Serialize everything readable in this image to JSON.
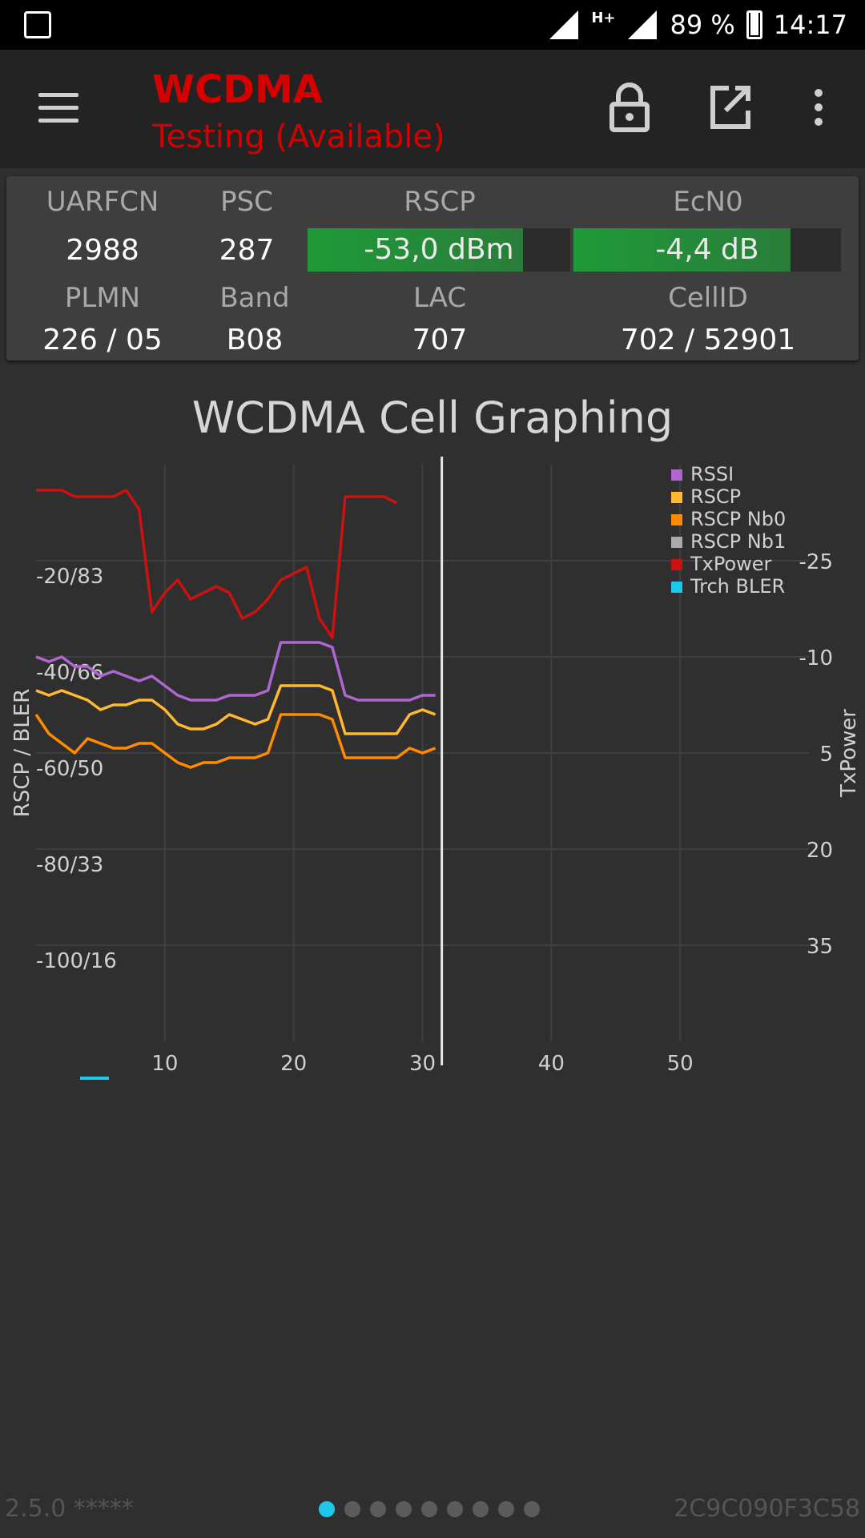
{
  "status_bar": {
    "battery": "89 %",
    "time": "14:17",
    "network": "H+"
  },
  "app_bar": {
    "title": "WCDMA",
    "subtitle": "Testing (Available)"
  },
  "cell_info": {
    "uarfcn_label": "UARFCN",
    "uarfcn": "2988",
    "psc_label": "PSC",
    "psc": "287",
    "rscp_label": "RSCP",
    "rscp": "-53,0 dBm",
    "rscp_fill": 0.82,
    "ecn0_label": "EcN0",
    "ecn0": "-4,4 dB",
    "ecn0_fill": 0.81,
    "plmn_label": "PLMN",
    "plmn": "226 / 05",
    "band_label": "Band",
    "band": "B08",
    "lac_label": "LAC",
    "lac": "707",
    "cellid_label": "CellID",
    "cellid": "702 / 52901"
  },
  "chart_data": {
    "type": "line",
    "title": "WCDMA Cell Graphing",
    "ylabel_left": "RSCP / BLER",
    "ylabel_right": "TxPower",
    "xlim": [
      0,
      60
    ],
    "ylim_left": [
      -120,
      0
    ],
    "ylim_right": [
      -40,
      50
    ],
    "x_ticks": [
      "10",
      "20",
      "30",
      "40",
      "50"
    ],
    "y_left_ticks": [
      {
        "value": -20,
        "label": "-20/83"
      },
      {
        "value": -40,
        "label": "-40/66"
      },
      {
        "value": -60,
        "label": "-60/50"
      },
      {
        "value": -80,
        "label": "-80/33"
      },
      {
        "value": -100,
        "label": "-100/16"
      }
    ],
    "y_right_ticks": [
      "-25",
      "-10",
      "5",
      "20",
      "35"
    ],
    "grid": true,
    "legend_position": "top-right",
    "cursor_x": 31.5,
    "series": [
      {
        "name": "RSSI",
        "color": "#b066d0",
        "axis": "left",
        "values": [
          -40,
          -41,
          -40,
          -42,
          -42,
          -44,
          -43,
          -44,
          -45,
          -44,
          -46,
          -48,
          -49,
          -49,
          -49,
          -48,
          -48,
          -48,
          -47,
          -37,
          -37,
          -37,
          -37,
          -38,
          -48,
          -49,
          -49,
          -49,
          -49,
          -49,
          -48,
          -48
        ]
      },
      {
        "name": "RSCP",
        "color": "#ffb830",
        "axis": "left",
        "values": [
          -47,
          -48,
          -47,
          -48,
          -49,
          -51,
          -50,
          -50,
          -49,
          -49,
          -51,
          -54,
          -55,
          -55,
          -54,
          -52,
          -53,
          -54,
          -53,
          -46,
          -46,
          -46,
          -46,
          -47,
          -56,
          -56,
          -56,
          -56,
          -56,
          -52,
          -51,
          -52
        ]
      },
      {
        "name": "RSCP Nb0",
        "color": "#ff8c00",
        "axis": "left",
        "values": [
          -52,
          -56,
          -58,
          -60,
          -57,
          -58,
          -59,
          -59,
          -58,
          -58,
          -60,
          -62,
          -63,
          -62,
          -62,
          -61,
          -61,
          -61,
          -60,
          -52,
          -52,
          -52,
          -52,
          -53,
          -61,
          -61,
          -61,
          -61,
          -61,
          -59,
          -60,
          -59
        ]
      },
      {
        "name": "RSCP Nb1",
        "color": "#aaaaaa",
        "axis": "left",
        "values": []
      },
      {
        "name": "TxPower",
        "color": "#cc1111",
        "axis": "right",
        "values": [
          -36,
          -36,
          -36,
          -35,
          -35,
          -35,
          -35,
          -36,
          -33,
          -17,
          -20,
          -22,
          -19,
          -20,
          -21,
          -20,
          -16,
          -17,
          -19,
          -22,
          -23,
          -24,
          -16,
          -13,
          -35,
          -35,
          -35,
          -35,
          -34
        ]
      },
      {
        "name": "Trch BLER",
        "color": "#1ec8ea",
        "axis": "left",
        "values": []
      }
    ]
  },
  "footer": {
    "version": "2.5.0 *****",
    "device_id": "2C9C090F3C58"
  },
  "pager": {
    "count": 9,
    "active": 0
  }
}
